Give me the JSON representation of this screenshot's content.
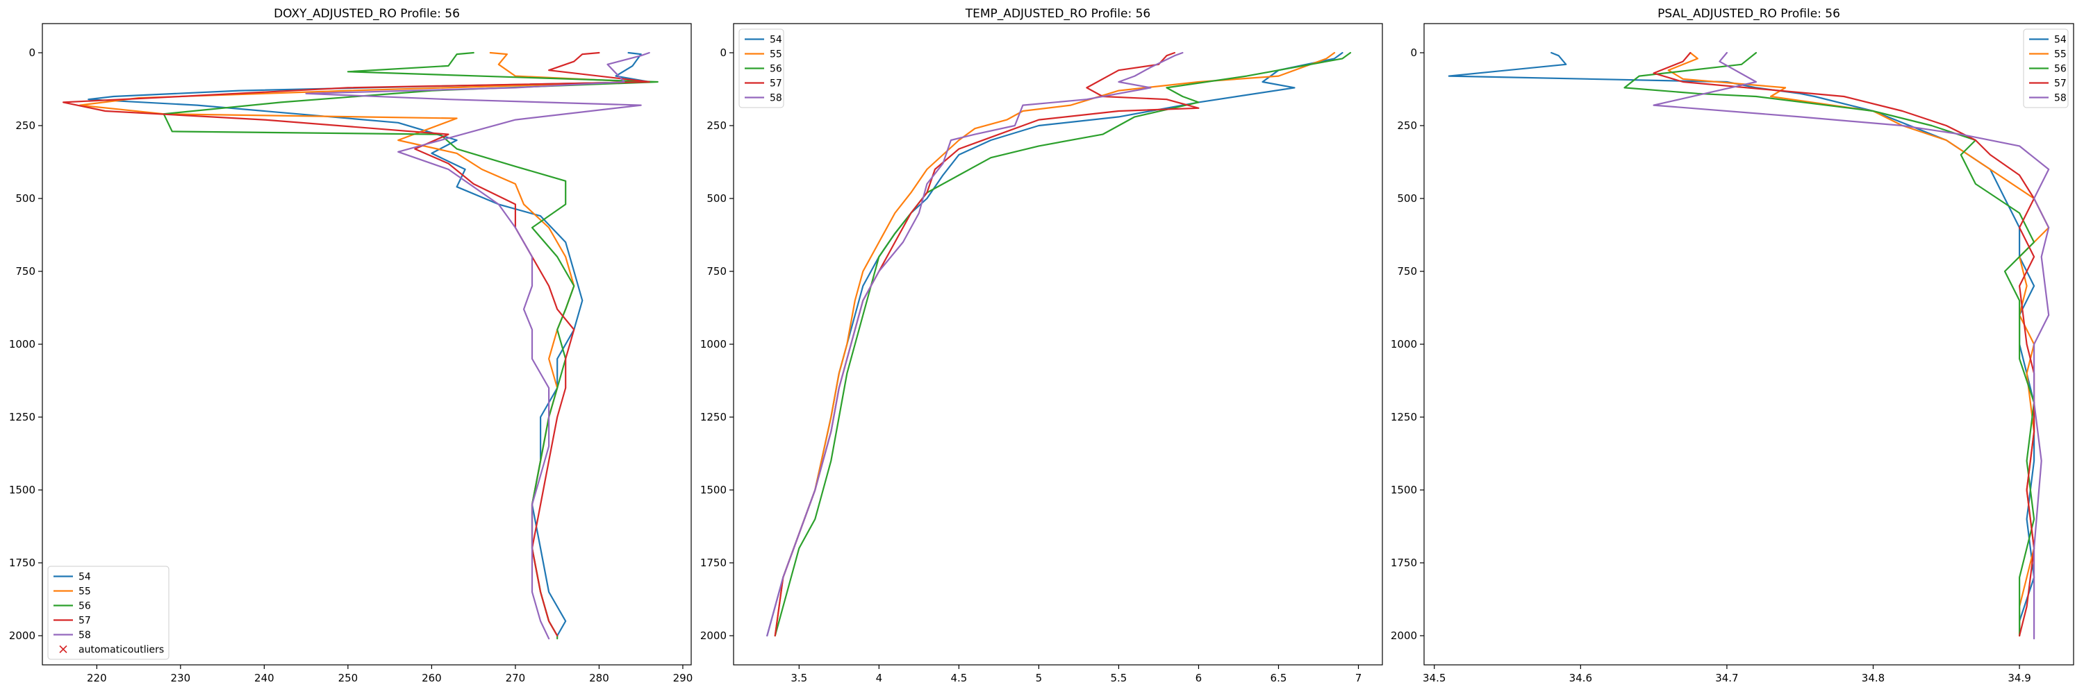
{
  "figure": {
    "panels": [
      {
        "title": "DOXY_ADJUSTED_RO Profile: 56",
        "legend_items": [
          "54",
          "55",
          "56",
          "57",
          "58",
          "automaticoutliers"
        ]
      },
      {
        "title": "TEMP_ADJUSTED_RO Profile: 56",
        "legend_items": [
          "54",
          "55",
          "56",
          "57",
          "58"
        ]
      },
      {
        "title": "PSAL_ADJUSTED_RO Profile: 56",
        "legend_items": [
          "54",
          "55",
          "56",
          "57",
          "58"
        ]
      }
    ]
  },
  "chart_data": [
    {
      "type": "line",
      "title": "DOXY_ADJUSTED_RO Profile: 56",
      "xlabel": "",
      "ylabel": "",
      "xlim": [
        213.5,
        291
      ],
      "ylim": [
        2100,
        -100
      ],
      "y_inverted": true,
      "xticks": [
        220,
        230,
        240,
        250,
        260,
        270,
        280,
        290
      ],
      "yticks": [
        0,
        250,
        500,
        750,
        1000,
        1250,
        1500,
        1750,
        2000
      ],
      "legend": [
        "54",
        "55",
        "56",
        "57",
        "58",
        "automaticoutliers"
      ],
      "legend_position": "lower-left",
      "colors": [
        "#1f77b4",
        "#ff7f0e",
        "#2ca02c",
        "#d62728",
        "#9467bd"
      ],
      "outlier_marker": {
        "label": "automaticoutliers",
        "symbol": "x",
        "color": "#d62728",
        "points": []
      },
      "series": [
        {
          "name": "54",
          "x": [
            283.5,
            285,
            284,
            282,
            286,
            260,
            237,
            222,
            219,
            232,
            256,
            263,
            260,
            264,
            263,
            268,
            273,
            276,
            277,
            278,
            277,
            275,
            275,
            273,
            273,
            272,
            273,
            274,
            276,
            275
          ],
          "y": [
            0,
            5,
            45,
            80,
            100,
            115,
            130,
            150,
            160,
            180,
            240,
            300,
            345,
            400,
            460,
            520,
            560,
            650,
            750,
            850,
            950,
            1050,
            1150,
            1250,
            1400,
            1550,
            1700,
            1850,
            1950,
            2000
          ]
        },
        {
          "name": "55",
          "x": [
            267,
            269,
            268,
            270,
            285,
            250,
            225,
            218,
            228,
            263,
            256,
            263,
            266,
            270,
            271,
            274,
            276,
            277,
            276,
            275,
            274,
            275,
            274,
            273,
            272,
            272,
            273,
            274,
            275
          ],
          "y": [
            0,
            5,
            40,
            80,
            100,
            130,
            155,
            180,
            210,
            225,
            300,
            345,
            400,
            450,
            520,
            600,
            700,
            800,
            880,
            950,
            1050,
            1150,
            1250,
            1400,
            1550,
            1700,
            1850,
            1950,
            2000
          ]
        },
        {
          "name": "56",
          "x": [
            265,
            263,
            262,
            250,
            287,
            260,
            242,
            228,
            229,
            261,
            263,
            270,
            276,
            276,
            272,
            275,
            277,
            276,
            275,
            276,
            275,
            274,
            273,
            272,
            272,
            273,
            274,
            275,
            275
          ],
          "y": [
            0,
            5,
            45,
            65,
            100,
            130,
            170,
            210,
            270,
            280,
            330,
            390,
            440,
            520,
            600,
            700,
            800,
            880,
            950,
            1050,
            1150,
            1250,
            1400,
            1550,
            1700,
            1850,
            1950,
            2000,
            2010
          ]
        },
        {
          "name": "57",
          "x": [
            280,
            278,
            277,
            274,
            286,
            250,
            230,
            216,
            221,
            240,
            262,
            258,
            262,
            265,
            270,
            270,
            272,
            274,
            275,
            277,
            276,
            276,
            275,
            274,
            273,
            272,
            273,
            274,
            275
          ],
          "y": [
            0,
            5,
            30,
            60,
            100,
            120,
            150,
            170,
            200,
            230,
            280,
            330,
            380,
            450,
            520,
            600,
            700,
            800,
            880,
            950,
            1050,
            1150,
            1250,
            1400,
            1550,
            1700,
            1850,
            1950,
            2000
          ]
        },
        {
          "name": "58",
          "x": [
            286,
            285,
            281,
            283,
            270,
            245,
            262,
            285,
            270,
            256,
            262,
            268,
            270,
            272,
            272,
            271,
            272,
            272,
            274,
            274,
            274,
            273,
            272,
            272,
            272,
            272,
            273,
            274
          ],
          "y": [
            0,
            10,
            40,
            100,
            120,
            140,
            160,
            180,
            230,
            340,
            400,
            520,
            600,
            700,
            800,
            880,
            950,
            1050,
            1150,
            1250,
            1350,
            1450,
            1550,
            1650,
            1750,
            1850,
            1950,
            2010
          ]
        }
      ]
    },
    {
      "type": "line",
      "title": "TEMP_ADJUSTED_RO Profile: 56",
      "xlabel": "",
      "ylabel": "",
      "xlim": [
        3.09,
        7.15
      ],
      "ylim": [
        2100,
        -100
      ],
      "y_inverted": true,
      "xticks": [
        3.5,
        4.0,
        4.5,
        5.0,
        5.5,
        6.0,
        6.5,
        7.0
      ],
      "yticks": [
        0,
        250,
        500,
        750,
        1000,
        1250,
        1500,
        1750,
        2000
      ],
      "legend": [
        "54",
        "55",
        "56",
        "57",
        "58"
      ],
      "legend_position": "top-left",
      "colors": [
        "#1f77b4",
        "#ff7f0e",
        "#2ca02c",
        "#d62728",
        "#9467bd"
      ],
      "series": [
        {
          "name": "54",
          "x": [
            6.9,
            6.85,
            6.5,
            6.4,
            6.6,
            6.0,
            5.5,
            5.0,
            4.7,
            4.5,
            4.4,
            4.3,
            4.2,
            4.1,
            4.0,
            3.9,
            3.85,
            3.8,
            3.75,
            3.7,
            3.6,
            3.5,
            3.4,
            3.3
          ],
          "y": [
            0,
            20,
            60,
            100,
            120,
            170,
            220,
            250,
            300,
            350,
            420,
            500,
            550,
            620,
            700,
            800,
            900,
            1000,
            1100,
            1250,
            1500,
            1650,
            1800,
            2000
          ]
        },
        {
          "name": "55",
          "x": [
            6.85,
            6.8,
            6.5,
            6.0,
            5.5,
            5.2,
            4.9,
            4.8,
            4.6,
            4.5,
            4.4,
            4.3,
            4.2,
            4.1,
            4.0,
            3.9,
            3.85,
            3.8,
            3.75,
            3.7,
            3.6,
            3.5,
            3.4,
            3.35
          ],
          "y": [
            0,
            20,
            80,
            100,
            130,
            180,
            200,
            230,
            260,
            300,
            350,
            400,
            480,
            550,
            650,
            750,
            850,
            1000,
            1100,
            1250,
            1500,
            1650,
            1800,
            2000
          ]
        },
        {
          "name": "56",
          "x": [
            6.95,
            6.9,
            6.3,
            5.8,
            5.9,
            6.0,
            5.6,
            5.4,
            5.0,
            4.7,
            4.5,
            4.3,
            4.2,
            4.1,
            4.0,
            3.95,
            3.9,
            3.85,
            3.8,
            3.75,
            3.7,
            3.6,
            3.5,
            3.4,
            3.35
          ],
          "y": [
            0,
            20,
            80,
            120,
            150,
            170,
            220,
            280,
            320,
            360,
            420,
            480,
            550,
            620,
            700,
            800,
            900,
            1000,
            1100,
            1250,
            1400,
            1600,
            1700,
            1900,
            2000
          ]
        },
        {
          "name": "57",
          "x": [
            5.85,
            5.8,
            5.75,
            5.5,
            5.3,
            5.4,
            5.8,
            6.0,
            5.5,
            5.0,
            4.7,
            4.5,
            4.35,
            4.3,
            4.2,
            4.1,
            4.0,
            3.9,
            3.85,
            3.8,
            3.75,
            3.7,
            3.6,
            3.5,
            3.4,
            3.35
          ],
          "y": [
            0,
            10,
            40,
            60,
            120,
            150,
            160,
            190,
            200,
            230,
            290,
            330,
            400,
            480,
            550,
            650,
            750,
            850,
            950,
            1050,
            1150,
            1300,
            1500,
            1650,
            1800,
            2000
          ]
        },
        {
          "name": "58",
          "x": [
            5.9,
            5.85,
            5.7,
            5.6,
            5.5,
            5.7,
            5.3,
            4.9,
            4.85,
            4.6,
            4.45,
            4.4,
            4.3,
            4.25,
            4.15,
            4.0,
            3.9,
            3.85,
            3.8,
            3.75,
            3.7,
            3.6,
            3.5,
            3.4,
            3.3
          ],
          "y": [
            0,
            10,
            50,
            80,
            100,
            120,
            160,
            180,
            250,
            280,
            300,
            380,
            450,
            550,
            650,
            750,
            850,
            950,
            1050,
            1150,
            1300,
            1500,
            1650,
            1800,
            2000
          ]
        }
      ]
    },
    {
      "type": "line",
      "title": "PSAL_ADJUSTED_RO Profile: 56",
      "xlabel": "",
      "ylabel": "",
      "xlim": [
        34.493,
        34.937
      ],
      "ylim": [
        2100,
        -100
      ],
      "y_inverted": true,
      "xticks": [
        34.5,
        34.6,
        34.7,
        34.8,
        34.9
      ],
      "yticks": [
        0,
        250,
        500,
        750,
        1000,
        1250,
        1500,
        1750,
        2000
      ],
      "legend": [
        "54",
        "55",
        "56",
        "57",
        "58"
      ],
      "legend_position": "top-right",
      "colors": [
        "#1f77b4",
        "#ff7f0e",
        "#2ca02c",
        "#d62728",
        "#9467bd"
      ],
      "series": [
        {
          "name": "54",
          "x": [
            34.58,
            34.585,
            34.59,
            34.51,
            34.7,
            34.72,
            34.75,
            34.76,
            34.8,
            34.85,
            34.88,
            34.89,
            34.9,
            34.9,
            34.91,
            34.9,
            34.9,
            34.905,
            34.91,
            34.91,
            34.905,
            34.91,
            34.9,
            34.9
          ],
          "y": [
            0,
            10,
            40,
            80,
            100,
            120,
            140,
            150,
            200,
            300,
            400,
            500,
            600,
            700,
            800,
            900,
            1000,
            1100,
            1200,
            1400,
            1600,
            1800,
            1950,
            2000
          ]
        },
        {
          "name": "55",
          "x": [
            34.675,
            34.68,
            34.66,
            34.67,
            34.74,
            34.73,
            34.8,
            34.82,
            34.85,
            34.88,
            34.91,
            34.92,
            34.9,
            34.905,
            34.9,
            34.91,
            34.905,
            34.91,
            34.905,
            34.91,
            34.9,
            34.9
          ],
          "y": [
            0,
            20,
            60,
            90,
            120,
            150,
            200,
            250,
            300,
            400,
            500,
            600,
            700,
            800,
            900,
            1000,
            1100,
            1300,
            1500,
            1700,
            1900,
            2000
          ]
        },
        {
          "name": "56",
          "x": [
            34.72,
            34.71,
            34.64,
            34.63,
            34.68,
            34.72,
            34.8,
            34.84,
            34.87,
            34.86,
            34.87,
            34.9,
            34.91,
            34.89,
            34.9,
            34.9,
            34.9,
            34.91,
            34.905,
            34.91,
            34.9,
            34.9
          ],
          "y": [
            0,
            40,
            80,
            120,
            140,
            150,
            200,
            250,
            300,
            350,
            450,
            550,
            650,
            750,
            850,
            950,
            1050,
            1200,
            1400,
            1600,
            1800,
            2000
          ]
        },
        {
          "name": "57",
          "x": [
            34.675,
            34.67,
            34.65,
            34.67,
            34.78,
            34.82,
            34.85,
            34.87,
            34.88,
            34.9,
            34.91,
            34.9,
            34.91,
            34.9,
            34.905,
            34.91,
            34.91,
            34.905,
            34.91,
            34.905,
            34.9
          ],
          "y": [
            0,
            30,
            70,
            100,
            150,
            200,
            250,
            300,
            350,
            420,
            500,
            600,
            700,
            800,
            1000,
            1100,
            1300,
            1500,
            1700,
            1900,
            2000
          ]
        },
        {
          "name": "58",
          "x": [
            34.7,
            34.695,
            34.72,
            34.65,
            34.75,
            34.82,
            34.86,
            34.9,
            34.92,
            34.91,
            34.92,
            34.915,
            34.92,
            34.91,
            34.91,
            34.915,
            34.91,
            34.91
          ],
          "y": [
            0,
            30,
            100,
            180,
            220,
            250,
            280,
            320,
            400,
            500,
            600,
            700,
            900,
            1000,
            1200,
            1400,
            1700,
            2010
          ]
        }
      ]
    }
  ]
}
